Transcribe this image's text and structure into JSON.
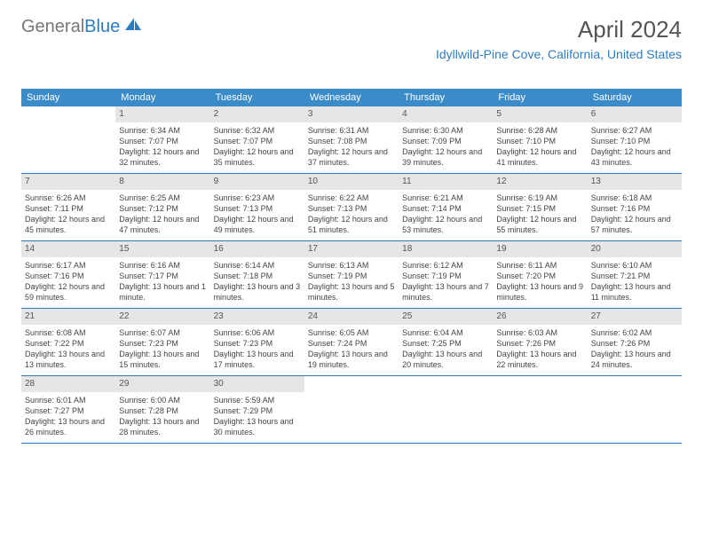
{
  "logo": {
    "text_gray": "General",
    "text_blue": "Blue"
  },
  "title": "April 2024",
  "location": "Idyllwild-Pine Cove, California, United States",
  "colors": {
    "header_bg": "#3b8bc9",
    "header_text": "#ffffff",
    "daynum_bg": "#e6e6e6",
    "border": "#2d7cc0",
    "location_color": "#2d7cc0"
  },
  "day_names": [
    "Sunday",
    "Monday",
    "Tuesday",
    "Wednesday",
    "Thursday",
    "Friday",
    "Saturday"
  ],
  "weeks": [
    [
      {
        "n": "",
        "empty": true
      },
      {
        "n": "1",
        "sr": "6:34 AM",
        "ss": "7:07 PM",
        "dl": "12 hours and 32 minutes."
      },
      {
        "n": "2",
        "sr": "6:32 AM",
        "ss": "7:07 PM",
        "dl": "12 hours and 35 minutes."
      },
      {
        "n": "3",
        "sr": "6:31 AM",
        "ss": "7:08 PM",
        "dl": "12 hours and 37 minutes."
      },
      {
        "n": "4",
        "sr": "6:30 AM",
        "ss": "7:09 PM",
        "dl": "12 hours and 39 minutes."
      },
      {
        "n": "5",
        "sr": "6:28 AM",
        "ss": "7:10 PM",
        "dl": "12 hours and 41 minutes."
      },
      {
        "n": "6",
        "sr": "6:27 AM",
        "ss": "7:10 PM",
        "dl": "12 hours and 43 minutes."
      }
    ],
    [
      {
        "n": "7",
        "sr": "6:26 AM",
        "ss": "7:11 PM",
        "dl": "12 hours and 45 minutes."
      },
      {
        "n": "8",
        "sr": "6:25 AM",
        "ss": "7:12 PM",
        "dl": "12 hours and 47 minutes."
      },
      {
        "n": "9",
        "sr": "6:23 AM",
        "ss": "7:13 PM",
        "dl": "12 hours and 49 minutes."
      },
      {
        "n": "10",
        "sr": "6:22 AM",
        "ss": "7:13 PM",
        "dl": "12 hours and 51 minutes."
      },
      {
        "n": "11",
        "sr": "6:21 AM",
        "ss": "7:14 PM",
        "dl": "12 hours and 53 minutes."
      },
      {
        "n": "12",
        "sr": "6:19 AM",
        "ss": "7:15 PM",
        "dl": "12 hours and 55 minutes."
      },
      {
        "n": "13",
        "sr": "6:18 AM",
        "ss": "7:16 PM",
        "dl": "12 hours and 57 minutes."
      }
    ],
    [
      {
        "n": "14",
        "sr": "6:17 AM",
        "ss": "7:16 PM",
        "dl": "12 hours and 59 minutes."
      },
      {
        "n": "15",
        "sr": "6:16 AM",
        "ss": "7:17 PM",
        "dl": "13 hours and 1 minute."
      },
      {
        "n": "16",
        "sr": "6:14 AM",
        "ss": "7:18 PM",
        "dl": "13 hours and 3 minutes."
      },
      {
        "n": "17",
        "sr": "6:13 AM",
        "ss": "7:19 PM",
        "dl": "13 hours and 5 minutes."
      },
      {
        "n": "18",
        "sr": "6:12 AM",
        "ss": "7:19 PM",
        "dl": "13 hours and 7 minutes."
      },
      {
        "n": "19",
        "sr": "6:11 AM",
        "ss": "7:20 PM",
        "dl": "13 hours and 9 minutes."
      },
      {
        "n": "20",
        "sr": "6:10 AM",
        "ss": "7:21 PM",
        "dl": "13 hours and 11 minutes."
      }
    ],
    [
      {
        "n": "21",
        "sr": "6:08 AM",
        "ss": "7:22 PM",
        "dl": "13 hours and 13 minutes."
      },
      {
        "n": "22",
        "sr": "6:07 AM",
        "ss": "7:23 PM",
        "dl": "13 hours and 15 minutes."
      },
      {
        "n": "23",
        "sr": "6:06 AM",
        "ss": "7:23 PM",
        "dl": "13 hours and 17 minutes."
      },
      {
        "n": "24",
        "sr": "6:05 AM",
        "ss": "7:24 PM",
        "dl": "13 hours and 19 minutes."
      },
      {
        "n": "25",
        "sr": "6:04 AM",
        "ss": "7:25 PM",
        "dl": "13 hours and 20 minutes."
      },
      {
        "n": "26",
        "sr": "6:03 AM",
        "ss": "7:26 PM",
        "dl": "13 hours and 22 minutes."
      },
      {
        "n": "27",
        "sr": "6:02 AM",
        "ss": "7:26 PM",
        "dl": "13 hours and 24 minutes."
      }
    ],
    [
      {
        "n": "28",
        "sr": "6:01 AM",
        "ss": "7:27 PM",
        "dl": "13 hours and 26 minutes."
      },
      {
        "n": "29",
        "sr": "6:00 AM",
        "ss": "7:28 PM",
        "dl": "13 hours and 28 minutes."
      },
      {
        "n": "30",
        "sr": "5:59 AM",
        "ss": "7:29 PM",
        "dl": "13 hours and 30 minutes."
      },
      {
        "n": "",
        "empty": true
      },
      {
        "n": "",
        "empty": true
      },
      {
        "n": "",
        "empty": true
      },
      {
        "n": "",
        "empty": true
      }
    ]
  ],
  "labels": {
    "sunrise": "Sunrise:",
    "sunset": "Sunset:",
    "daylight": "Daylight:"
  }
}
